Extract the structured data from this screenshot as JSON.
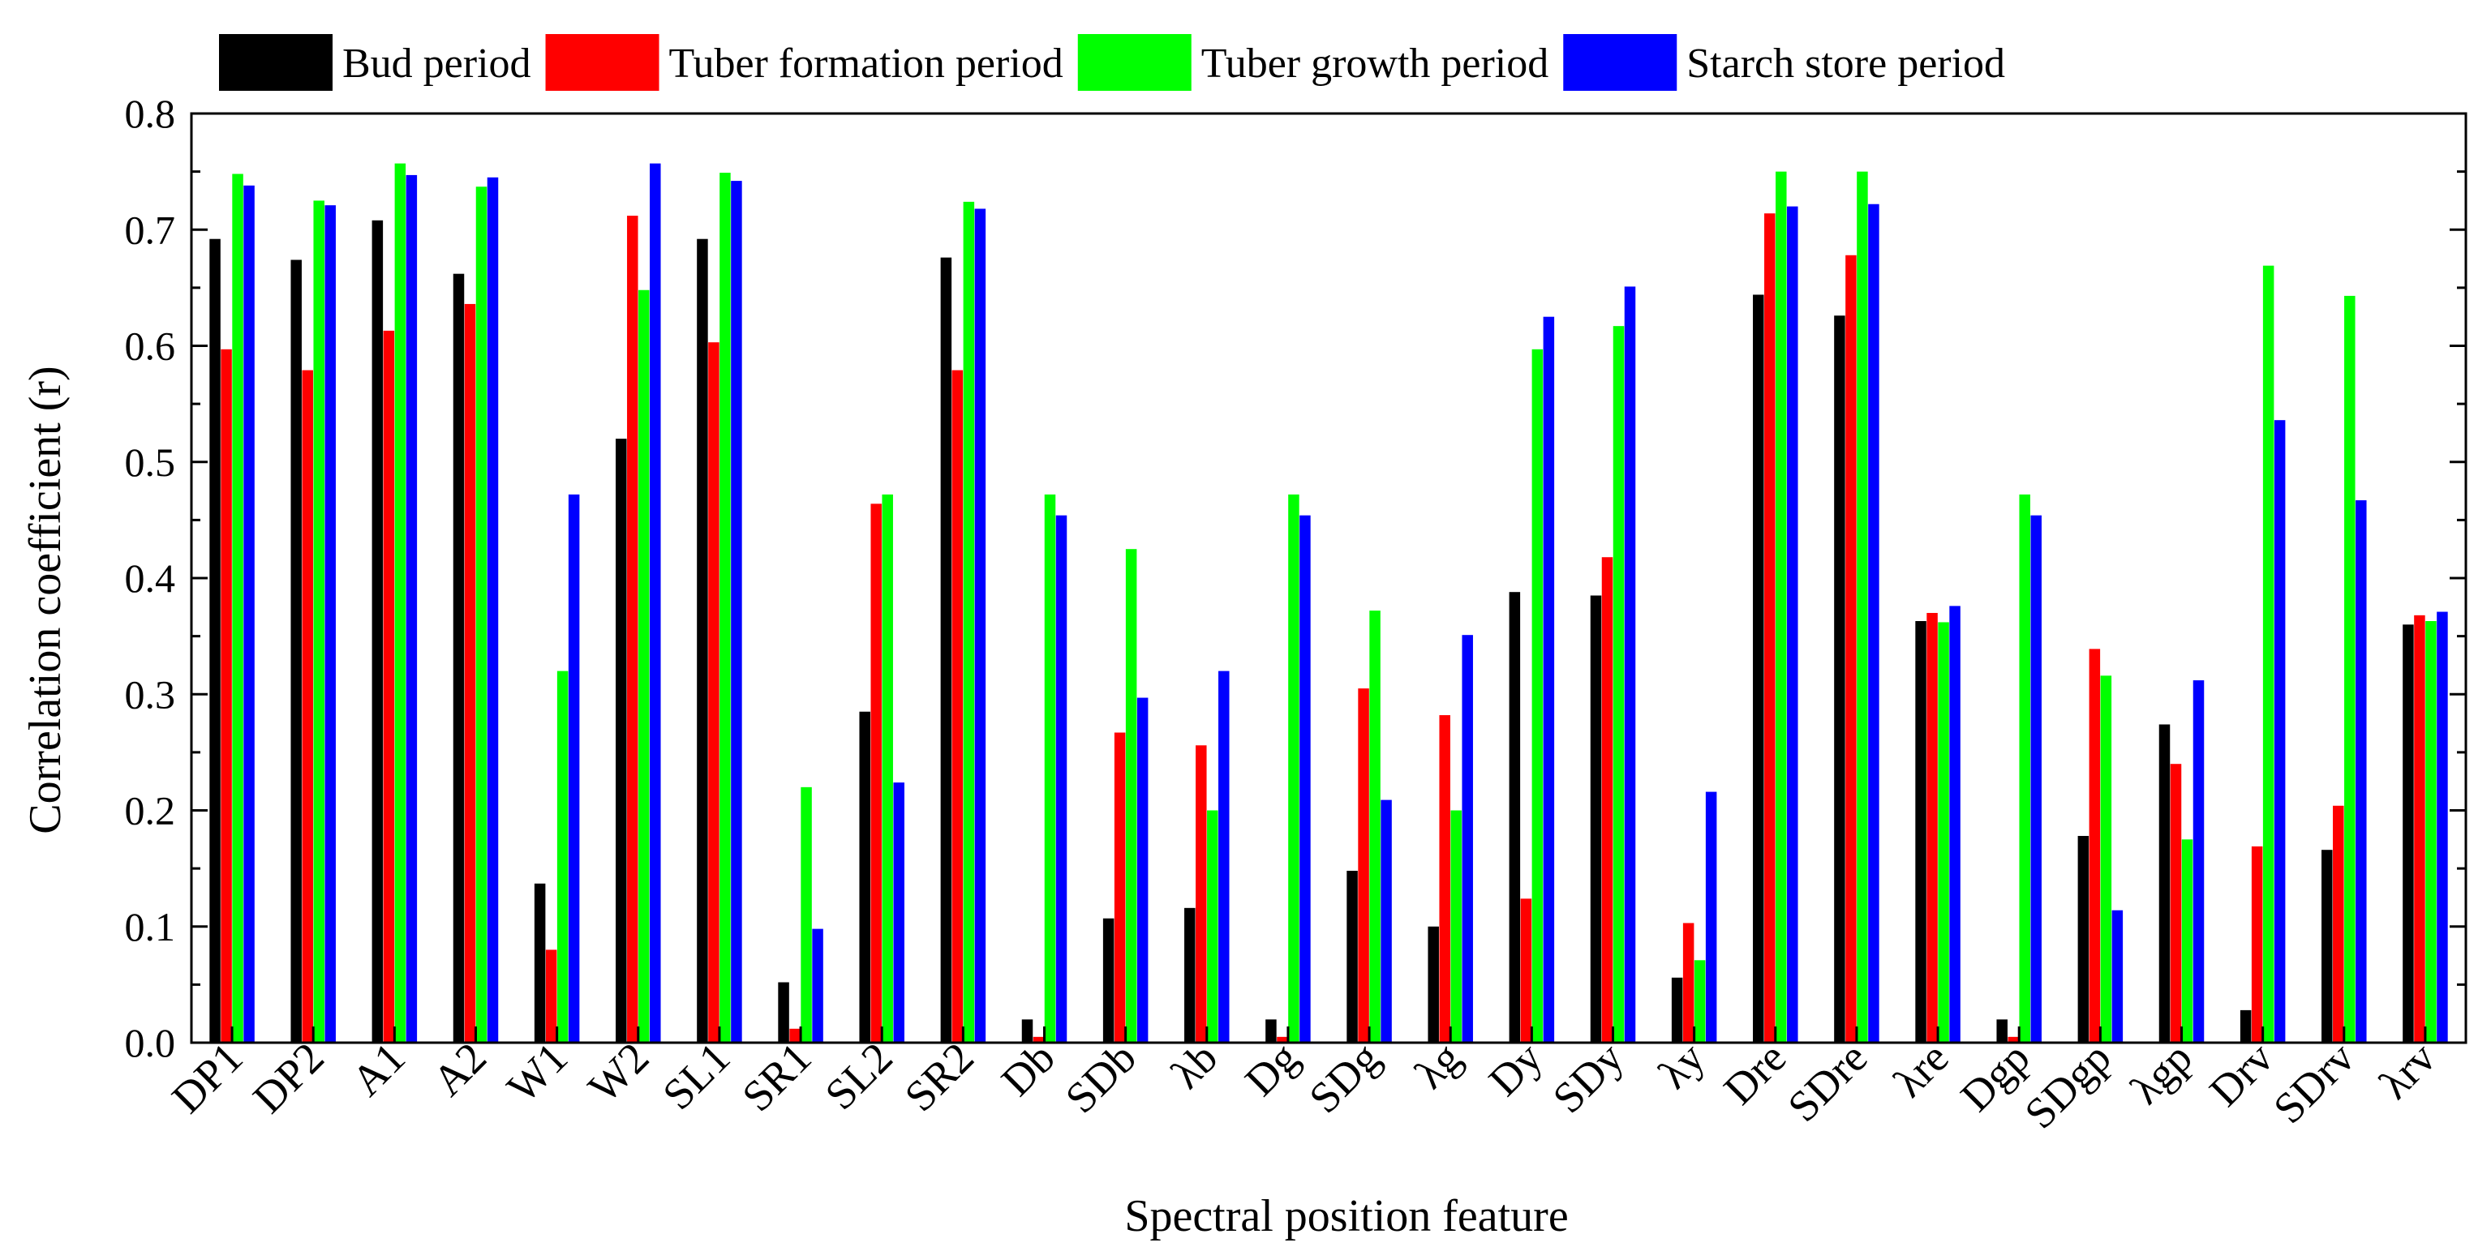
{
  "chart_data": {
    "type": "bar",
    "title": "",
    "xlabel": "Spectral position feature",
    "ylabel": "Correlation coefficient (r)",
    "ylim": [
      0,
      0.8
    ],
    "yticks": [
      "0.0",
      "0.1",
      "0.2",
      "0.3",
      "0.4",
      "0.5",
      "0.6",
      "0.7",
      "0.8"
    ],
    "grid": false,
    "legend_position": "top",
    "categories": [
      "DP1",
      "DP2",
      "A1",
      "A2",
      "W1",
      "W2",
      "SL1",
      "SR1",
      "SL2",
      "SR2",
      "Db",
      "SDb",
      "λb",
      "Dg",
      "SDg",
      "λg",
      "Dy",
      "SDy",
      "λy",
      "Dre",
      "SDre",
      "λre",
      "Dgp",
      "SDgp",
      "λgp",
      "Drv",
      "SDrv",
      "λrv"
    ],
    "series": [
      {
        "name": "Bud period",
        "color": "#000000",
        "values": [
          0.692,
          0.674,
          0.708,
          0.662,
          0.137,
          0.52,
          0.692,
          0.052,
          0.285,
          0.676,
          0.02,
          0.107,
          0.116,
          0.02,
          0.148,
          0.1,
          0.388,
          0.385,
          0.056,
          0.644,
          0.626,
          0.363,
          0.02,
          0.178,
          0.274,
          0.028,
          0.166,
          0.36
        ]
      },
      {
        "name": "Tuber formation period",
        "color": "#ff0000",
        "values": [
          0.597,
          0.579,
          0.613,
          0.636,
          0.08,
          0.712,
          0.603,
          0.012,
          0.464,
          0.579,
          0.005,
          0.267,
          0.256,
          0.005,
          0.305,
          0.282,
          0.124,
          0.418,
          0.103,
          0.714,
          0.678,
          0.37,
          0.005,
          0.339,
          0.24,
          0.169,
          0.204,
          0.368
        ]
      },
      {
        "name": "Tuber growth period",
        "color": "#00ff00",
        "values": [
          0.748,
          0.725,
          0.757,
          0.737,
          0.32,
          0.648,
          0.749,
          0.22,
          0.472,
          0.724,
          0.472,
          0.425,
          0.2,
          0.472,
          0.372,
          0.2,
          0.597,
          0.617,
          0.071,
          0.75,
          0.75,
          0.362,
          0.472,
          0.316,
          0.175,
          0.669,
          0.643,
          0.363
        ]
      },
      {
        "name": "Starch store period",
        "color": "#0000ff",
        "values": [
          0.738,
          0.721,
          0.747,
          0.745,
          0.472,
          0.757,
          0.742,
          0.098,
          0.224,
          0.718,
          0.454,
          0.297,
          0.32,
          0.454,
          0.209,
          0.351,
          0.625,
          0.651,
          0.216,
          0.72,
          0.722,
          0.376,
          0.454,
          0.114,
          0.312,
          0.536,
          0.467,
          0.371
        ]
      }
    ]
  }
}
